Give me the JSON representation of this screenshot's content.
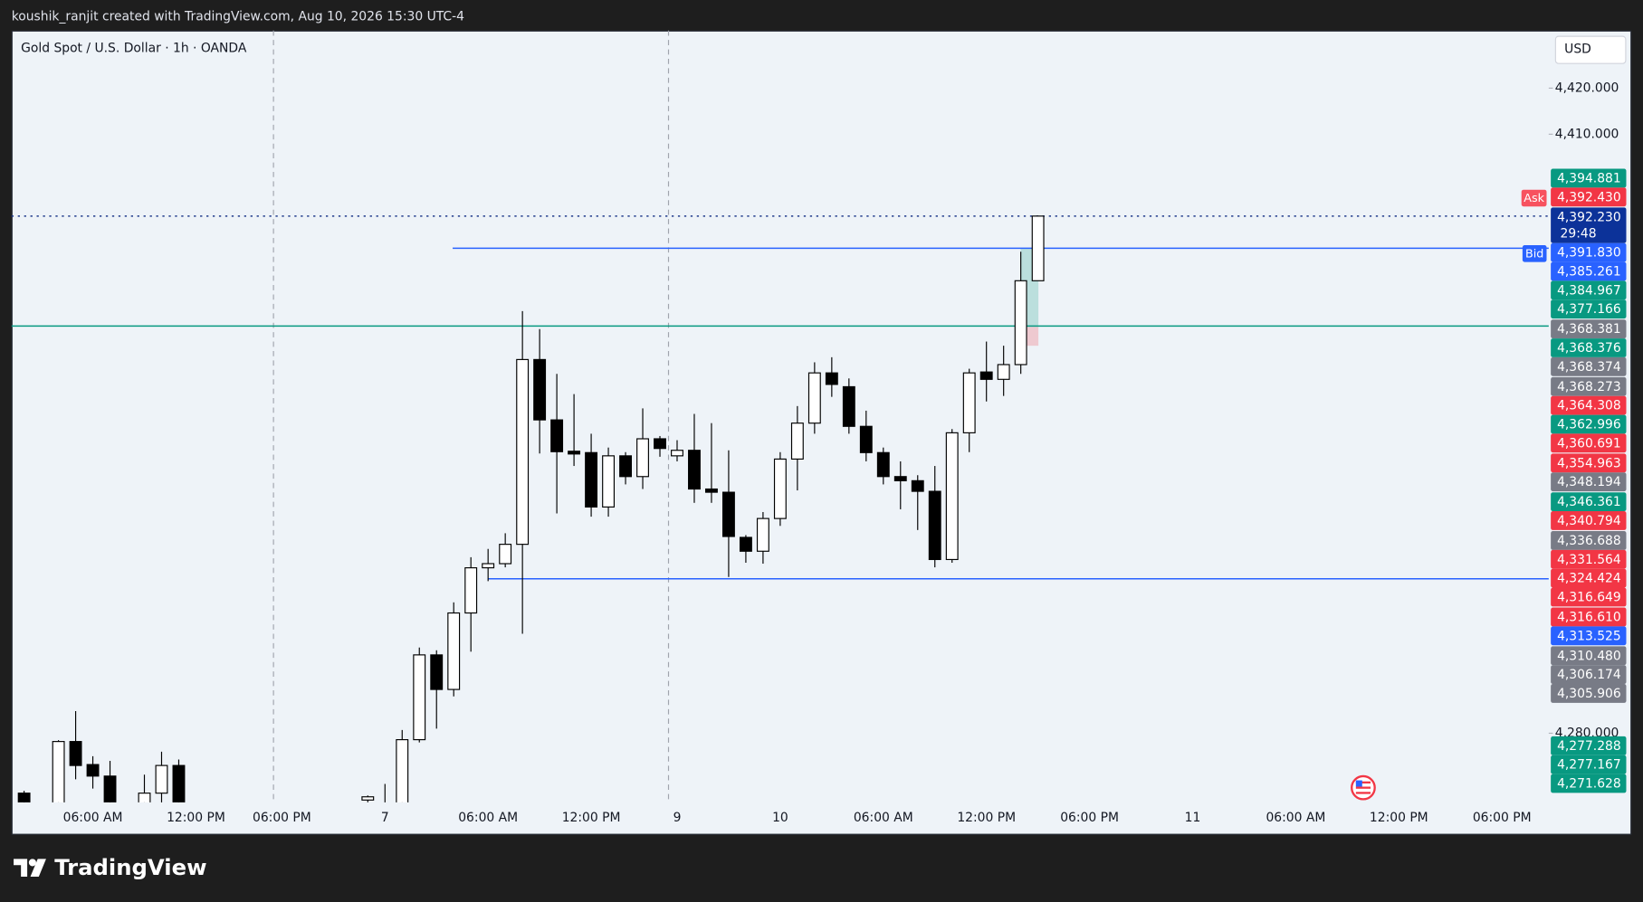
{
  "header": {
    "attribution": "koushik_ranjit created with TradingView.com, Aug 10, 2026 15:30 UTC-4",
    "logo": "TradingView"
  },
  "chart_data": {
    "type": "candlestick",
    "title": "Gold Spot / U.S. Dollar · 1h · OANDA",
    "currency": "USD",
    "categories": [
      null,
      null,
      null,
      null,
      "06:00 AM",
      null,
      null,
      null,
      null,
      null,
      "12:00 PM",
      null,
      null,
      null,
      null,
      "06:00 PM",
      null,
      null,
      null,
      null,
      null,
      "7",
      null,
      null,
      null,
      null,
      null,
      "06:00 AM",
      null,
      null,
      null,
      null,
      null,
      "12:00 PM",
      null,
      null,
      null,
      null,
      "9",
      null,
      null,
      null,
      null,
      null,
      "10",
      null,
      null,
      null,
      null,
      null,
      "06:00 AM",
      null,
      null,
      null,
      null,
      null,
      "12:00 PM",
      null,
      null,
      null,
      null,
      null,
      "06:00 PM",
      null,
      null,
      null,
      null,
      null,
      "11",
      null,
      null,
      null,
      null,
      null,
      "06:00 AM",
      null,
      null,
      null,
      null,
      null,
      "12:00 PM",
      null,
      null,
      null,
      null,
      null,
      "06:00 PM",
      null,
      null
    ],
    "open": [
      4267,
      null,
      4262,
      4278.2,
      4273.2,
      4270.7,
      null,
      4262,
      4267,
      4273,
      null,
      null,
      null,
      null,
      null,
      null,
      null,
      null,
      null,
      null,
      4265.5,
      4262,
      4263,
      4278.6,
      4297,
      4289.5,
      4306.1,
      4315.9,
      4316.8,
      4321,
      4361.1,
      4348,
      4341.2,
      4340.9,
      4329.1,
      4340.2,
      4335.7,
      4343.9,
      4340.2,
      4341.4,
      4333,
      4332.3,
      4322.5,
      4319.5,
      4326.6,
      4339.5,
      4347.3,
      4358.2,
      4355.2,
      4346.6,
      4340.9,
      4335.7,
      4334.8,
      4332.5,
      4317.7,
      4345.2,
      4358.4,
      4356.8,
      4360,
      4378.2,
      null,
      null,
      null,
      null,
      null,
      null,
      null,
      null,
      null,
      null,
      null,
      null,
      null,
      null,
      null,
      null,
      null,
      null,
      null,
      null,
      null,
      null,
      null,
      null,
      null,
      null,
      null,
      null,
      null
    ],
    "high": [
      4267.5,
      null,
      4278.5,
      4284.8,
      4275,
      4274,
      null,
      4271,
      4276,
      4274.3,
      null,
      null,
      null,
      null,
      null,
      null,
      null,
      null,
      null,
      null,
      4266.5,
      4269,
      4280.7,
      4298.6,
      4298,
      4308.4,
      4318.2,
      4320,
      4323.4,
      4371.6,
      4367.7,
      4358,
      4353.6,
      4345,
      4342,
      4341,
      4350.5,
      4344.5,
      4343.6,
      4349.3,
      4347.3,
      4341.4,
      4323,
      4328,
      4341,
      4351,
      4360.5,
      4361.6,
      4357,
      4350,
      4342,
      4339,
      4336,
      4338,
      4346,
      4359.1,
      4365,
      4364.1,
      4384.5,
      4392.23,
      null,
      null,
      null,
      null,
      null,
      null,
      null,
      null,
      null,
      null,
      null,
      null,
      null,
      null,
      null,
      null,
      null,
      null,
      null,
      null,
      null,
      null,
      null,
      null,
      null,
      null,
      null,
      null,
      null
    ],
    "low": [
      4262,
      null,
      4260,
      4270,
      4268,
      4260,
      null,
      4260,
      4264,
      4260,
      null,
      null,
      null,
      null,
      null,
      null,
      null,
      null,
      null,
      null,
      4265,
      4260,
      4262,
      4278,
      4281,
      4288,
      4297.7,
      4313,
      4316,
      4301.6,
      4340.7,
      4327.7,
      4338,
      4327,
      4327,
      4334,
      4333,
      4340,
      4339,
      4330,
      4330,
      4313.9,
      4317,
      4316.8,
      4325,
      4332.7,
      4345,
      4353,
      4345,
      4339,
      4334,
      4328.6,
      4324.1,
      4316,
      4317,
      4341,
      4352,
      4353.2,
      4358,
      4378.2,
      null,
      null,
      null,
      null,
      null,
      null,
      null,
      null,
      null,
      null,
      null,
      null,
      null,
      null,
      null,
      null,
      null,
      null,
      null,
      null,
      null,
      null,
      null,
      null,
      null,
      null,
      null,
      null,
      null
    ],
    "close": [
      4263,
      null,
      4278.2,
      4273,
      4270.7,
      4263,
      null,
      4267,
      4273,
      4262,
      null,
      null,
      null,
      null,
      null,
      null,
      null,
      null,
      null,
      null,
      4266.2,
      4263,
      4278.6,
      4297,
      4289.5,
      4306.1,
      4315.9,
      4316.8,
      4321,
      4361.1,
      4348,
      4341.1,
      4340.6,
      4329.1,
      4340.2,
      4335.7,
      4343.9,
      4341.8,
      4341.4,
      4333,
      4332.3,
      4322.7,
      4319.5,
      4326.6,
      4339.5,
      4347.3,
      4358.2,
      4355.7,
      4346.6,
      4340.9,
      4335.7,
      4334.8,
      4332.5,
      4317.7,
      4345.2,
      4358.2,
      4356.8,
      4360,
      4378.2,
      4392.23,
      null,
      null,
      null,
      null,
      null,
      null,
      null,
      null,
      null,
      null,
      null,
      null,
      null,
      null,
      null,
      null,
      null,
      null,
      null,
      null,
      null,
      null,
      null,
      null,
      null,
      null,
      null,
      null,
      null
    ],
    "up_color": "#ffffff",
    "down_color": "#000000",
    "ylim": [
      4265,
      4432.5
    ],
    "yticks": [
      {
        "value": 4420,
        "label": "4,420.000"
      },
      {
        "value": 4410,
        "label": "4,410.000"
      },
      {
        "value": 4280,
        "label": "4,280.000"
      }
    ],
    "levels": [
      {
        "value": 4392.23,
        "color": "#1e3a8a",
        "style": "dotted"
      },
      {
        "value": 4385.261,
        "color": "#2962ff",
        "style": "solid"
      },
      {
        "value": 4368.381,
        "color": "#089981",
        "style": "solid"
      },
      {
        "value": 4313.525,
        "color": "#2962ff",
        "style": "solid"
      }
    ],
    "ask_label": "Ask",
    "bid_label": "Bid",
    "countdown": "29:48",
    "price_labels": [
      {
        "label": "4,394.881",
        "color": "#089981"
      },
      {
        "label": "4,392.430",
        "color": "#f23645"
      },
      {
        "label": "4,392.230",
        "color": "#0c3299"
      },
      {
        "label": "4,391.830",
        "color": "#2962ff"
      },
      {
        "label": "4,385.261",
        "color": "#2962ff"
      },
      {
        "label": "4,384.967",
        "color": "#089981"
      },
      {
        "label": "4,377.166",
        "color": "#089981"
      },
      {
        "label": "4,368.381",
        "color": "#787b86"
      },
      {
        "label": "4,368.376",
        "color": "#089981"
      },
      {
        "label": "4,368.374",
        "color": "#787b86"
      },
      {
        "label": "4,368.273",
        "color": "#787b86"
      },
      {
        "label": "4,364.308",
        "color": "#f23645"
      },
      {
        "label": "4,362.996",
        "color": "#089981"
      },
      {
        "label": "4,360.691",
        "color": "#f23645"
      },
      {
        "label": "4,354.963",
        "color": "#f23645"
      },
      {
        "label": "4,348.194",
        "color": "#787b86"
      },
      {
        "label": "4,346.361",
        "color": "#089981"
      },
      {
        "label": "4,340.794",
        "color": "#f23645"
      },
      {
        "label": "4,336.688",
        "color": "#787b86"
      },
      {
        "label": "4,331.564",
        "color": "#f23645"
      },
      {
        "label": "4,324.424",
        "color": "#f23645"
      },
      {
        "label": "4,316.649",
        "color": "#f23645"
      },
      {
        "label": "4,316.610",
        "color": "#f23645"
      },
      {
        "label": "4,313.525",
        "color": "#2962ff"
      },
      {
        "label": "4,310.480",
        "color": "#787b86"
      },
      {
        "label": "4,306.174",
        "color": "#787b86"
      },
      {
        "label": "4,305.906",
        "color": "#787b86"
      },
      {
        "label": "4,277.288",
        "color": "#089981"
      },
      {
        "label": "4,277.167",
        "color": "#089981"
      },
      {
        "label": "4,271.628",
        "color": "#089981"
      }
    ]
  }
}
